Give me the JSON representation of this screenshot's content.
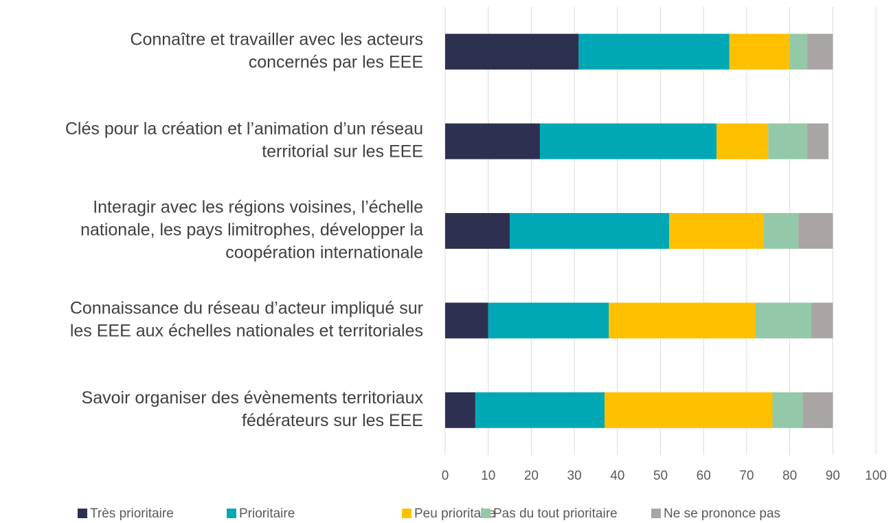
{
  "chart_data": {
    "type": "stacked_barh",
    "categories": [
      [
        "Connaître et travailler avec les acteurs",
        "concernés par les EEE"
      ],
      [
        "Clés pour la création et l’animation d’un réseau",
        "territorial sur les EEE"
      ],
      [
        "Interagir avec les régions voisines, l’échelle",
        "nationale, les pays limitrophes, développer la",
        "coopération internationale"
      ],
      [
        "Connaissance du réseau d’acteur impliqué sur",
        "les EEE aux échelles nationales et territoriales"
      ],
      [
        "Savoir organiser des évènements territoriaux",
        "fédérateurs sur les EEE"
      ]
    ],
    "series": [
      {
        "name": "Très prioritaire",
        "color": "#2e3050",
        "values": [
          31,
          22,
          15,
          10,
          7
        ]
      },
      {
        "name": "Prioritaire",
        "color": "#00a8b5",
        "values": [
          35,
          41,
          37,
          28,
          30
        ]
      },
      {
        "name": "Peu prioritaire",
        "color": "#ffc000",
        "values": [
          14,
          12,
          22,
          34,
          39
        ]
      },
      {
        "name": "Pas du tout prioritaire",
        "color": "#93c9a8",
        "values": [
          4,
          9,
          8,
          13,
          7
        ]
      },
      {
        "name": "Ne se prononce pas",
        "color": "#a9a5a5",
        "values": [
          6,
          5,
          8,
          5,
          7
        ]
      }
    ],
    "xlim": [
      0,
      100
    ],
    "xticks": [
      0,
      10,
      20,
      30,
      40,
      50,
      60,
      70,
      80,
      90,
      100
    ],
    "grid": true,
    "legend": "bottom"
  }
}
